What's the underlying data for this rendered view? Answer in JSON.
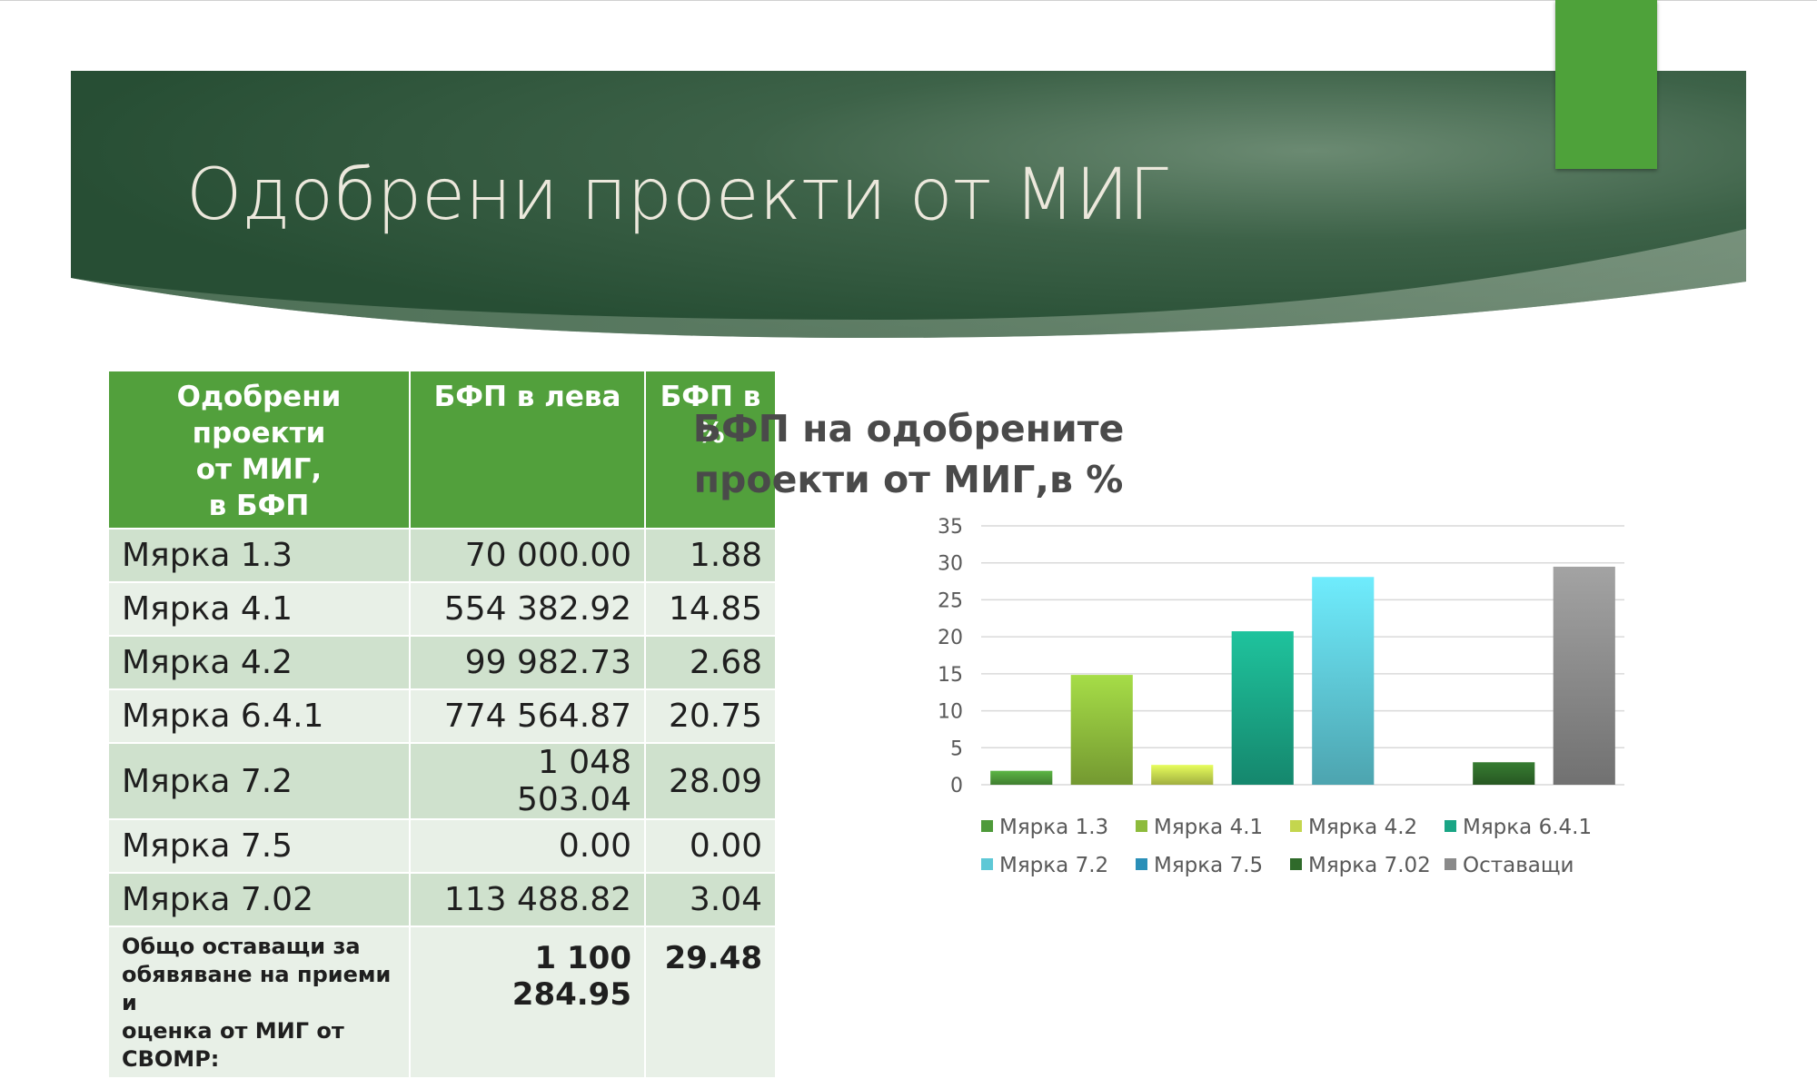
{
  "slide": {
    "title": "Одобрени проекти от МИГ"
  },
  "table": {
    "headers": [
      "Одобрени проекти от МИГ, в БФП",
      "БФП в лева",
      "БФП в %"
    ],
    "header_lines": {
      "col1": [
        "Одобрени проекти",
        "от МИГ,",
        "в БФП"
      ],
      "col2": [
        "БФП в лева"
      ],
      "col3": [
        "БФП в",
        "%"
      ]
    },
    "rows": [
      {
        "label": "Мярка 1.3",
        "leva": "70 000.00",
        "pct": "1.88"
      },
      {
        "label": "Мярка 4.1",
        "leva": "554 382.92",
        "pct": "14.85"
      },
      {
        "label": "Мярка 4.2",
        "leva": "99 982.73",
        "pct": "2.68"
      },
      {
        "label": "Мярка 6.4.1",
        "leva": "774 564.87",
        "pct": "20.75"
      },
      {
        "label": "Мярка 7.2",
        "leva": "1 048 503.04",
        "pct": "28.09"
      },
      {
        "label": "Мярка 7.5",
        "leva": "0.00",
        "pct": "0.00"
      },
      {
        "label": "Мярка 7.02",
        "leva": "113 488.82",
        "pct": "3.04"
      }
    ],
    "total": {
      "label_lines": [
        "Общо оставащи за",
        "обявяване на приеми и",
        "оценка от МИГ от СВОМР:"
      ],
      "leva": "1 100 284.95",
      "pct": "29.48"
    }
  },
  "chart_data": {
    "type": "bar",
    "title": "БФП на одобрените проекти от МИГ,в %",
    "title_lines": [
      "БФП на одобрените",
      "проекти от МИГ,в %"
    ],
    "categories": [
      "Мярка 1.3",
      "Мярка 4.1",
      "Мярка 4.2",
      "Мярка 6.4.1",
      "Мярка 7.2",
      "Мярка 7.5",
      "Мярка 7.02",
      "Оставащи"
    ],
    "values": [
      1.88,
      14.85,
      2.68,
      20.75,
      28.09,
      0.0,
      3.04,
      29.48
    ],
    "colors": [
      "#4e9a3a",
      "#8dbb3c",
      "#c4d64e",
      "#1aa585",
      "#5ec8d6",
      "#2a8fb8",
      "#2f6a2a",
      "#8a8a8a"
    ],
    "ylim": [
      0,
      35
    ],
    "yticks": [
      "0",
      "5",
      "10",
      "15",
      "20",
      "25",
      "30",
      "35"
    ],
    "grid": true,
    "legend_position": "bottom",
    "xlabel": "",
    "ylabel": ""
  }
}
